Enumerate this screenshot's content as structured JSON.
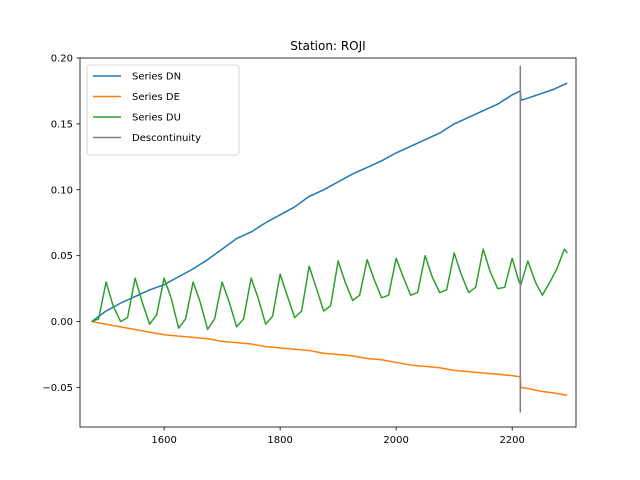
{
  "chart_data": {
    "type": "line",
    "title": "Station: ROJI",
    "xlabel": "",
    "ylabel": "",
    "xlim": [
      1455,
      2310
    ],
    "ylim": [
      -0.08,
      0.2
    ],
    "xticks": [
      1600,
      1800,
      2000,
      2200
    ],
    "yticks": [
      -0.05,
      0.0,
      0.05,
      0.1,
      0.15,
      0.2
    ],
    "ytick_labels": [
      "−0.05",
      "0.00",
      "0.05",
      "0.10",
      "0.15",
      "0.20"
    ],
    "grid": false,
    "legend": "top-left",
    "series": [
      {
        "name": "Series DN",
        "color": "#1f77b4",
        "x": [
          1475,
          1500,
          1525,
          1550,
          1575,
          1600,
          1625,
          1650,
          1675,
          1700,
          1725,
          1750,
          1775,
          1800,
          1825,
          1850,
          1875,
          1900,
          1925,
          1950,
          1975,
          2000,
          2025,
          2050,
          2075,
          2100,
          2125,
          2150,
          2175,
          2200,
          2214,
          2215,
          2230,
          2250,
          2270,
          2295
        ],
        "y": [
          0.0,
          0.008,
          0.014,
          0.019,
          0.024,
          0.028,
          0.034,
          0.04,
          0.047,
          0.055,
          0.063,
          0.068,
          0.075,
          0.081,
          0.087,
          0.095,
          0.1,
          0.106,
          0.112,
          0.117,
          0.122,
          0.128,
          0.133,
          0.138,
          0.143,
          0.15,
          0.155,
          0.16,
          0.165,
          0.172,
          0.175,
          0.168,
          0.17,
          0.173,
          0.176,
          0.181
        ]
      },
      {
        "name": "Series DE",
        "color": "#ff7f0e",
        "x": [
          1475,
          1500,
          1525,
          1550,
          1575,
          1600,
          1625,
          1650,
          1675,
          1700,
          1725,
          1750,
          1775,
          1800,
          1825,
          1850,
          1875,
          1900,
          1925,
          1950,
          1975,
          2000,
          2025,
          2050,
          2075,
          2100,
          2125,
          2150,
          2175,
          2200,
          2214,
          2215,
          2230,
          2250,
          2270,
          2295
        ],
        "y": [
          0.0,
          -0.002,
          -0.004,
          -0.006,
          -0.008,
          -0.01,
          -0.011,
          -0.012,
          -0.013,
          -0.015,
          -0.016,
          -0.017,
          -0.019,
          -0.02,
          -0.021,
          -0.022,
          -0.024,
          -0.025,
          -0.026,
          -0.028,
          -0.029,
          -0.031,
          -0.033,
          -0.034,
          -0.035,
          -0.037,
          -0.038,
          -0.039,
          -0.04,
          -0.041,
          -0.042,
          -0.05,
          -0.051,
          -0.053,
          -0.054,
          -0.056
        ]
      },
      {
        "name": "Series DU",
        "color": "#2ca02c",
        "x": [
          1475,
          1487,
          1500,
          1512,
          1525,
          1537,
          1550,
          1562,
          1575,
          1587,
          1600,
          1612,
          1625,
          1637,
          1650,
          1662,
          1675,
          1687,
          1700,
          1712,
          1725,
          1737,
          1750,
          1762,
          1775,
          1787,
          1800,
          1812,
          1825,
          1837,
          1850,
          1862,
          1875,
          1887,
          1900,
          1912,
          1925,
          1937,
          1950,
          1962,
          1975,
          1987,
          2000,
          2012,
          2025,
          2037,
          2050,
          2062,
          2075,
          2087,
          2100,
          2112,
          2125,
          2137,
          2150,
          2162,
          2175,
          2187,
          2200,
          2212,
          2215,
          2227,
          2240,
          2252,
          2265,
          2277,
          2290,
          2295
        ],
        "y": [
          0.0,
          0.002,
          0.03,
          0.012,
          0.0,
          0.003,
          0.033,
          0.015,
          -0.002,
          0.005,
          0.033,
          0.018,
          -0.005,
          0.002,
          0.03,
          0.015,
          -0.006,
          0.002,
          0.03,
          0.015,
          -0.004,
          0.002,
          0.033,
          0.018,
          -0.002,
          0.004,
          0.036,
          0.02,
          0.003,
          0.008,
          0.042,
          0.026,
          0.008,
          0.012,
          0.046,
          0.03,
          0.016,
          0.02,
          0.047,
          0.032,
          0.018,
          0.02,
          0.048,
          0.034,
          0.02,
          0.022,
          0.05,
          0.034,
          0.022,
          0.024,
          0.052,
          0.036,
          0.022,
          0.026,
          0.055,
          0.038,
          0.025,
          0.026,
          0.048,
          0.03,
          0.028,
          0.046,
          0.03,
          0.02,
          0.03,
          0.04,
          0.055,
          0.052
        ]
      },
      {
        "name": "Descontinuity",
        "color": "#808080",
        "x": [
          2214,
          2214
        ],
        "y": [
          -0.069,
          0.194
        ]
      }
    ]
  }
}
